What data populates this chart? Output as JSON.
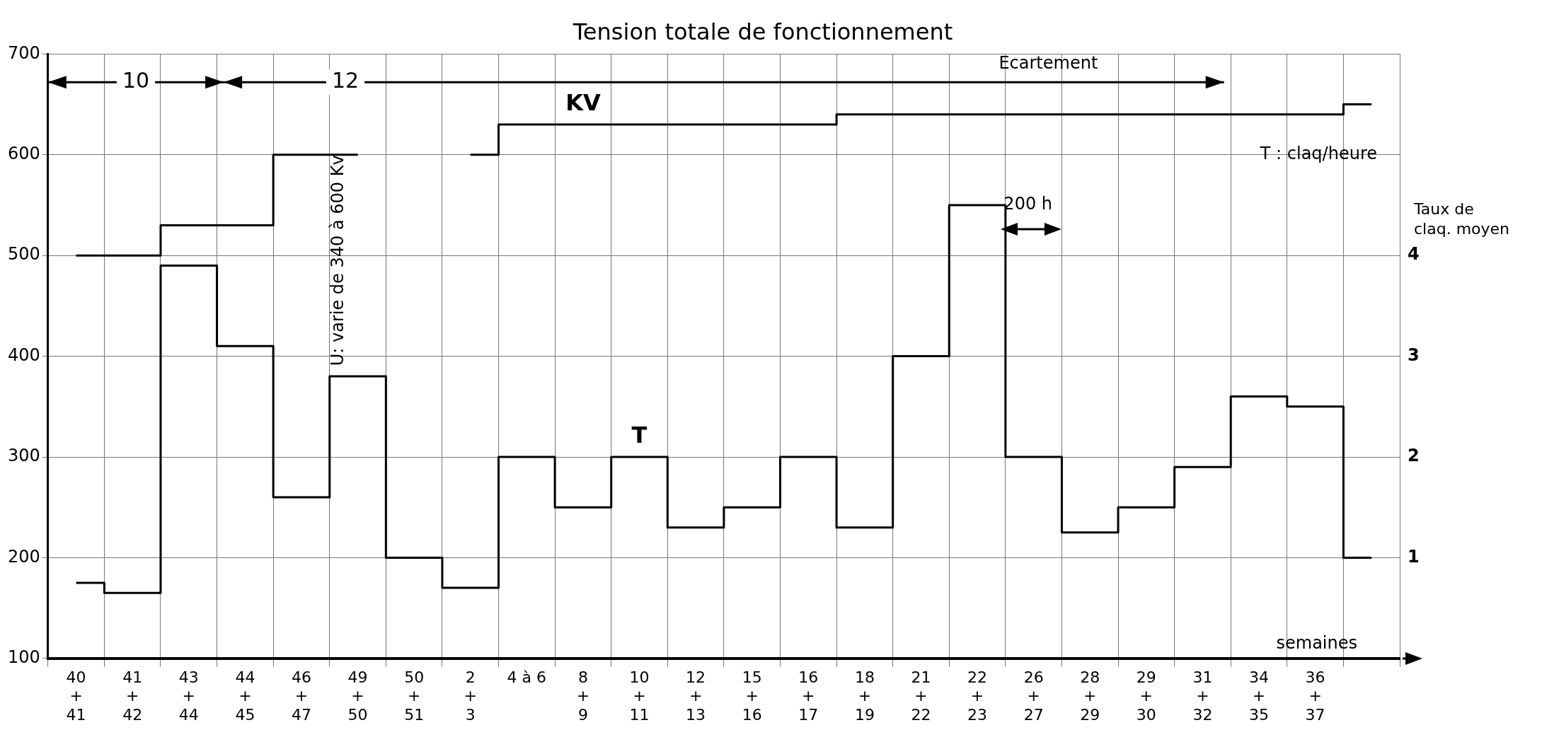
{
  "chart_data": {
    "type": "step",
    "title": "Tension totale de fonctionnement",
    "xlabel": "semaines",
    "y2label": "Taux de claq. moyen",
    "categories": [
      "40\n+\n41",
      "41\n+\n42",
      "43\n+\n44",
      "44\n+\n45",
      "46\n+\n47",
      "49\n+\n50",
      "50\n+\n51",
      "2\n+\n3",
      "4 à 6",
      "8\n+\n9",
      "10\n+\n11",
      "12\n+\n13",
      "15\n+\n16",
      "16\n+\n17",
      "18\n+\n19",
      "21\n+\n22",
      "22\n+\n23",
      "26\n+\n27",
      "28\n+\n29",
      "29\n+\n30",
      "31\n+\n32",
      "34\n+\n35",
      "36\n+\n37",
      null
    ],
    "series": [
      {
        "name": "KV",
        "color": "#000000",
        "values": [
          500,
          500,
          530,
          530,
          600,
          600,
          null,
          600,
          630,
          630,
          630,
          630,
          630,
          630,
          640,
          640,
          640,
          640,
          640,
          640,
          640,
          640,
          640,
          650
        ]
      },
      {
        "name": "T",
        "axis": "y2",
        "color": "#000000",
        "values": [
          0.75,
          0.65,
          3.9,
          3.1,
          1.6,
          2.8,
          1.0,
          0.7,
          2.0,
          1.5,
          2.0,
          1.3,
          1.5,
          2.0,
          1.3,
          3.0,
          4.5,
          2.0,
          1.25,
          1.5,
          1.9,
          2.6,
          2.5,
          1.0
        ]
      }
    ],
    "ylim": [
      100,
      700
    ],
    "yticks": [
      100,
      200,
      300,
      400,
      500,
      600,
      700
    ],
    "y2lim": [
      0,
      6
    ],
    "y2ticks": [
      1,
      2,
      3,
      4
    ],
    "grid": true,
    "legend": false,
    "line_style": "solid",
    "marker": "none",
    "annotations": [
      "10",
      "12",
      "Ecartement",
      "U: varie de 340 à 600 Kv",
      "200 h",
      "T : claq/heure"
    ]
  }
}
